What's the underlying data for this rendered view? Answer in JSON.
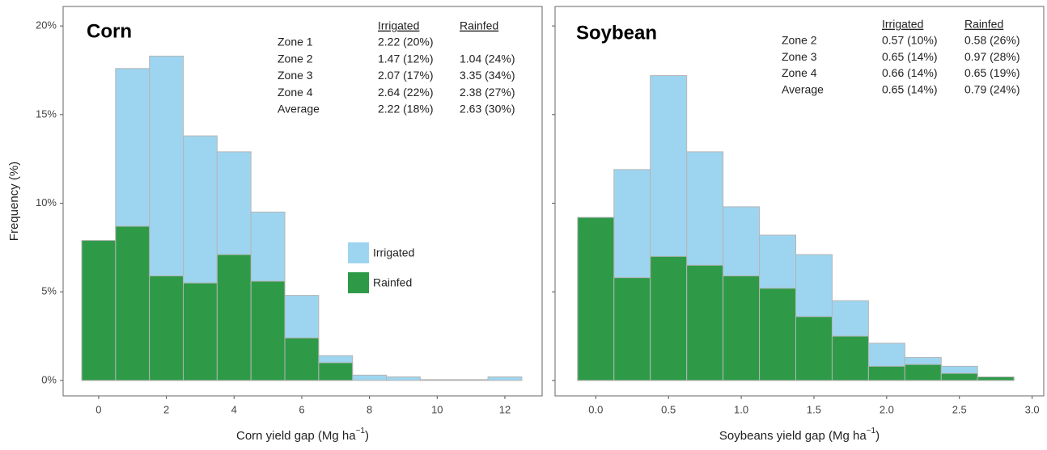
{
  "chart_data": [
    {
      "type": "histogram",
      "title": "Corn",
      "ylabel": "Frequency (%)",
      "xlabel": {
        "text": "Corn yield gap  (Mg ha",
        "sup": "−1",
        "close": ")"
      },
      "bins": [
        -0.5,
        0.5,
        1.5,
        2.5,
        3.5,
        4.5,
        5.5,
        6.5,
        7.5,
        8.5,
        9.5,
        10.5,
        11.5,
        12.5
      ],
      "series": [
        {
          "name": "Irrigated",
          "color": "#9dd5f0",
          "values": [
            7.5,
            17.6,
            18.3,
            13.8,
            12.9,
            9.5,
            4.8,
            1.4,
            0.3,
            0.2,
            0.05,
            0.05,
            0.2
          ]
        },
        {
          "name": "Rainfed",
          "color": "#2e9a48",
          "values": [
            7.9,
            8.7,
            5.9,
            5.5,
            7.1,
            5.6,
            2.4,
            1.0,
            0,
            0,
            0,
            0,
            0
          ]
        }
      ],
      "xlim": [
        -1.05,
        13.1
      ],
      "xticks": [
        0,
        2,
        4,
        6,
        8,
        10,
        12
      ],
      "ylim": [
        -0.87,
        21.1
      ],
      "yticks": [
        {
          "value": 0,
          "label": "0%"
        },
        {
          "value": 5,
          "label": "5%"
        },
        {
          "value": 10,
          "label": "10%"
        },
        {
          "value": 15,
          "label": "15%"
        },
        {
          "value": 20,
          "label": "20%"
        }
      ],
      "ytick_labels": true,
      "legend": "center-right",
      "table": {
        "columns": [
          "Irrigated",
          "Rainfed"
        ],
        "rows": [
          [
            "Zone 1",
            "2.22 (20%)",
            null
          ],
          [
            "Zone 2",
            "1.47 (12%)",
            "1.04 (24%)"
          ],
          [
            "Zone 3",
            "2.07 (17%)",
            "3.35 (34%)"
          ],
          [
            "Zone 4",
            "2.64 (22%)",
            "2.38 (27%)"
          ],
          [
            "Average",
            "2.22 (18%)",
            "2.63 (30%)"
          ]
        ]
      }
    },
    {
      "type": "histogram",
      "title": "Soybean",
      "xlabel": {
        "text": "Soybeans yield gap  (Mg ha",
        "sup": "−1",
        "close": ")"
      },
      "bins": [
        -0.125,
        0.125,
        0.375,
        0.625,
        0.875,
        1.125,
        1.375,
        1.625,
        1.875,
        2.125,
        2.375,
        2.625,
        2.875
      ],
      "series": [
        {
          "color": "#9dd5f0",
          "values": [
            8.0,
            11.9,
            17.2,
            12.9,
            9.8,
            8.2,
            7.1,
            4.5,
            2.1,
            1.3,
            0.8,
            0.1
          ]
        },
        {
          "color": "#2e9a48",
          "values": [
            9.2,
            5.8,
            7.0,
            6.5,
            5.9,
            5.2,
            3.6,
            2.5,
            0.8,
            0.9,
            0.4,
            0.2
          ]
        }
      ],
      "xlim": [
        -0.28,
        3.08
      ],
      "xticks": [
        {
          "value": 0,
          "label": "0.0"
        },
        0.5,
        {
          "value": 1,
          "label": "1.0"
        },
        1.5,
        {
          "value": 2,
          "label": "2.0"
        },
        2.5,
        {
          "value": 3,
          "label": "3.0"
        }
      ],
      "ylim": [
        -0.87,
        21.1
      ],
      "yticks": [
        0,
        5,
        10,
        15,
        20
      ],
      "ytick_labels": false,
      "legend": "none",
      "table": {
        "columns": [
          "Irrigated",
          "Rainfed"
        ],
        "rows": [
          [
            "Zone 2",
            "0.57 (10%)",
            "0.58 (26%)"
          ],
          [
            "Zone 3",
            "0.65 (14%)",
            "0.97 (28%)"
          ],
          [
            "Zone 4",
            "0.66 (14%)",
            "0.65 (19%)"
          ],
          [
            "Average",
            "0.65 (14%)",
            "0.79 (24%)"
          ]
        ]
      }
    }
  ]
}
